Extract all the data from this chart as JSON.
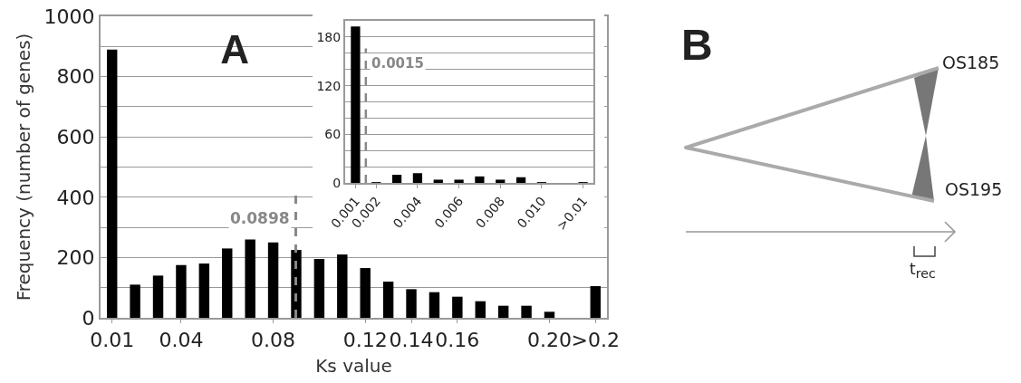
{
  "chart_data": [
    {
      "type": "bar",
      "title": "A",
      "xlabel": "Ks value",
      "ylabel": "Frequency (number of genes)",
      "x": [
        0.01,
        0.02,
        0.03,
        0.04,
        0.05,
        0.06,
        0.07,
        0.08,
        0.09,
        0.1,
        0.11,
        0.12,
        0.13,
        0.14,
        0.15,
        0.16,
        0.17,
        0.18,
        0.19,
        0.2,
        0.22
      ],
      "values": [
        890,
        110,
        140,
        175,
        180,
        230,
        260,
        250,
        225,
        195,
        210,
        165,
        120,
        95,
        85,
        70,
        55,
        40,
        40,
        20,
        105
      ],
      "color": "#000000",
      "xlim": [
        0.005,
        0.225
      ],
      "xticks": [
        0.01,
        0.04,
        0.08,
        0.12,
        0.14,
        0.16,
        {
          "value": 0.2,
          "label": "0.20"
        },
        {
          "value": 0.22,
          "label": ">0.2"
        }
      ],
      "ylim": [
        0,
        1000
      ],
      "yticks": [
        0,
        {
          "value": 100,
          "label": null
        },
        200,
        {
          "value": 300,
          "label": null
        },
        400,
        {
          "value": 500,
          "label": null
        },
        600,
        {
          "value": 700,
          "label": null
        },
        800,
        {
          "value": 900,
          "label": null
        },
        1000
      ],
      "grid": "y",
      "ref_lines": [
        {
          "axis": "x",
          "value": 0.0898,
          "label": "0.0898",
          "color": "#888888",
          "line_style": "dashed"
        }
      ]
    },
    {
      "type": "bar",
      "x": [
        0.001,
        0.002,
        0.003,
        0.004,
        0.005,
        0.006,
        0.007,
        0.008,
        0.009,
        0.01,
        0.012
      ],
      "values": [
        193,
        1,
        10,
        12,
        4,
        4,
        8,
        4,
        7,
        1,
        1
      ],
      "color": "#000000",
      "xlim": [
        0.0005,
        0.0125
      ],
      "xticks": [
        0.001,
        0.002,
        0.004,
        0.006,
        0.008,
        {
          "value": 0.01,
          "label": "0.010"
        },
        {
          "value": 0.012,
          "label": ">0.01"
        }
      ],
      "ylim": [
        0,
        200
      ],
      "yticks": [
        0,
        {
          "value": 20,
          "label": null
        },
        {
          "value": 40,
          "label": null
        },
        60,
        {
          "value": 80,
          "label": null
        },
        {
          "value": 100,
          "label": null
        },
        120,
        {
          "value": 140,
          "label": null
        },
        {
          "value": 160,
          "label": null
        },
        180,
        {
          "value": 200,
          "label": null
        }
      ],
      "grid": "y",
      "ref_lines": [
        {
          "axis": "x",
          "value": 0.0015,
          "label": "0.0015",
          "color": "#888888",
          "line_style": "dashed"
        }
      ]
    },
    {
      "type": "other",
      "title": "B",
      "annotations": [
        "OS185",
        "OS195",
        "t$_{rec}$"
      ]
    }
  ]
}
